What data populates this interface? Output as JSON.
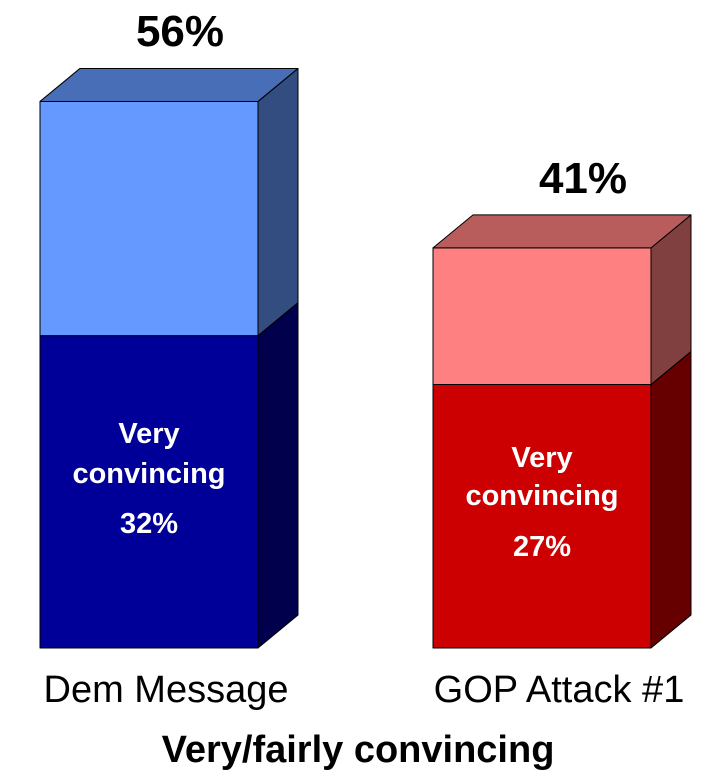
{
  "chart_data": {
    "type": "bar",
    "stacked": true,
    "three_d": true,
    "categories": [
      "Dem Message",
      "GOP Attack #1"
    ],
    "xlabel": "Very/fairly convincing",
    "series": [
      {
        "name": "Very convincing",
        "values": [
          32,
          27
        ]
      },
      {
        "values": [
          24,
          14
        ]
      }
    ],
    "totals": [
      56,
      41
    ],
    "total_labels": [
      "56%",
      "41%"
    ],
    "inner_labels": [
      {
        "line1": "Very",
        "line2": "convincing",
        "line3": "32%"
      },
      {
        "line1": "Very",
        "line2": "convincing",
        "line3": "27%"
      }
    ],
    "colors": {
      "dem_light": "#6699ff",
      "dem_dark": "#000099",
      "gop_light": "#ff8080",
      "gop_dark": "#cc0000"
    }
  }
}
